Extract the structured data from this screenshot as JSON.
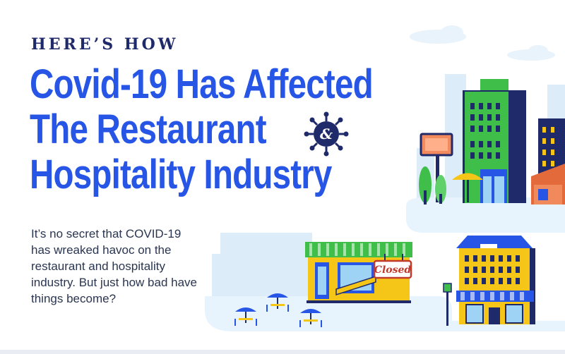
{
  "header": {
    "kicker": "HERE’S HOW",
    "title_lines": [
      "Covid-19 Has Affected",
      "The Restaurant",
      "Hospitality Industry"
    ],
    "ampersand": "&"
  },
  "intro": {
    "text": "It’s no secret that COVID-19 has wreaked havoc on the restaurant and hospitality industry. But just how bad have things become?"
  },
  "illustration": {
    "closed_sign": "Closed"
  },
  "colors": {
    "title_blue": "#2756e6",
    "navy": "#1f2a6b",
    "green_building": "#3fbf4a",
    "yellow": "#f5c518",
    "sky": "#dbeefb"
  }
}
